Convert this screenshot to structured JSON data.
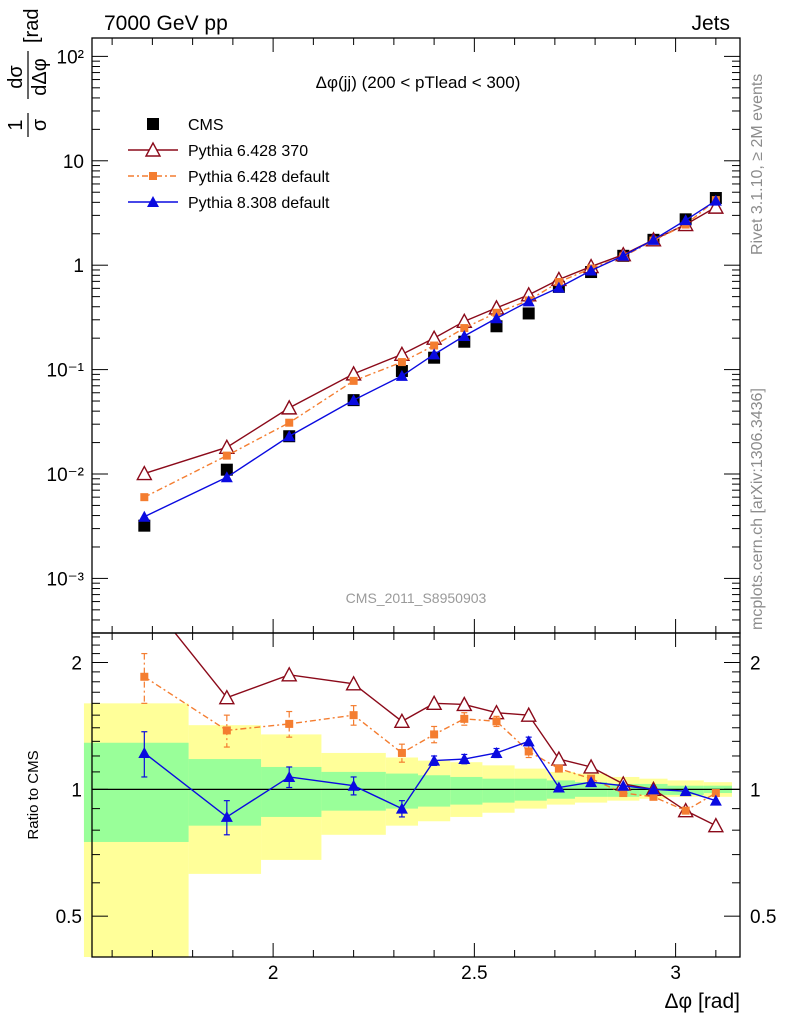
{
  "header": {
    "left": "7000 GeV pp",
    "right": "Jets"
  },
  "side_labels": {
    "rivet": "Rivet 3.1.10, ≥ 2M events",
    "mcplots": "mcplots.cern.ch [arXiv:1306.3436]"
  },
  "watermark": "CMS_2011_S8950903",
  "chart_data": {
    "type": "line",
    "title": "Δφ(jj) (200 < pTlead <  300)",
    "xlabel": "Δφ [rad]",
    "ylabel": "1/σ dσ/dΔφ [rad⁻¹]",
    "ratio_ylabel": "Ratio to CMS",
    "xlim": [
      1.55,
      3.16
    ],
    "ylim": [
      0.0003,
      150
    ],
    "yscale": "log",
    "ratio_ylim": [
      0.4,
      2.35
    ],
    "ratio_yscale": "log",
    "x_ticks": [
      2,
      2.5,
      3
    ],
    "x_tick_labels": [
      "2",
      "2.5",
      "3"
    ],
    "y_tick_labels": [
      "10⁻³",
      "10⁻²",
      "10⁻¹",
      "1",
      "10",
      "10²"
    ],
    "ratio_ticks": [
      0.5,
      1,
      2
    ],
    "ratio_tick_labels": [
      "0.5",
      "1",
      "2"
    ],
    "legend_position": "top-left",
    "x": [
      1.68,
      1.885,
      2.04,
      2.2,
      2.32,
      2.4,
      2.475,
      2.555,
      2.635,
      2.71,
      2.79,
      2.87,
      2.945,
      3.025,
      3.1
    ],
    "series": [
      {
        "name": "CMS",
        "color": "#000000",
        "marker": "square",
        "values": [
          0.0032,
          0.011,
          0.023,
          0.051,
          0.097,
          0.13,
          0.185,
          0.26,
          0.345,
          0.62,
          0.86,
          1.23,
          1.75,
          2.75,
          4.4
        ]
      },
      {
        "name": "Pythia 6.428 370",
        "color": "#8b0a1a",
        "marker": "triangle-open",
        "line": "solid",
        "values": [
          0.0101,
          0.018,
          0.043,
          0.091,
          0.14,
          0.2,
          0.29,
          0.39,
          0.52,
          0.73,
          0.97,
          1.26,
          1.75,
          2.45,
          3.6
        ],
        "ratio": [
          2.9,
          1.65,
          1.87,
          1.78,
          1.45,
          1.6,
          1.59,
          1.52,
          1.5,
          1.18,
          1.13,
          1.03,
          1.0,
          0.89,
          0.82
        ]
      },
      {
        "name": "Pythia 6.428 default",
        "color": "#f47d30",
        "marker": "square-small",
        "line": "dashdot",
        "values": [
          0.006,
          0.015,
          0.031,
          0.078,
          0.118,
          0.17,
          0.25,
          0.35,
          0.46,
          0.69,
          0.93,
          1.21,
          1.72,
          2.45,
          4.2
        ],
        "ratio": [
          1.85,
          1.38,
          1.43,
          1.5,
          1.22,
          1.35,
          1.47,
          1.45,
          1.23,
          1.12,
          1.06,
          0.98,
          0.96,
          0.89,
          0.98
        ],
        "ratio_err": [
          0.25,
          0.12,
          0.1,
          0.08,
          0.06,
          0.06,
          0.05,
          0.04,
          0.04,
          0.0,
          0.0,
          0.0,
          0.0,
          0.0,
          0.0
        ]
      },
      {
        "name": "Pythia 8.308 default",
        "color": "#0a0ae0",
        "marker": "triangle",
        "line": "solid",
        "values": [
          0.0039,
          0.0093,
          0.023,
          0.051,
          0.087,
          0.14,
          0.21,
          0.31,
          0.45,
          0.61,
          0.89,
          1.23,
          1.75,
          2.7,
          4.15
        ],
        "ratio": [
          1.22,
          0.86,
          1.07,
          1.02,
          0.9,
          1.17,
          1.18,
          1.22,
          1.3,
          1.01,
          1.04,
          1.02,
          1.0,
          0.99,
          0.94
        ],
        "ratio_err": [
          0.15,
          0.08,
          0.06,
          0.05,
          0.04,
          0.03,
          0.03,
          0.03,
          0.03,
          0.0,
          0.0,
          0.0,
          0.0,
          0.0,
          0.0
        ]
      }
    ],
    "uncertainty_bands": {
      "bin_edges": [
        1.53,
        1.79,
        1.97,
        2.12,
        2.28,
        2.36,
        2.44,
        2.52,
        2.6,
        2.68,
        2.75,
        2.83,
        2.91,
        2.98,
        3.07,
        3.14
      ],
      "yellow": [
        [
          0.3,
          1.6
        ],
        [
          0.63,
          1.42
        ],
        [
          0.68,
          1.35
        ],
        [
          0.78,
          1.22
        ],
        [
          0.82,
          1.19
        ],
        [
          0.84,
          1.17
        ],
        [
          0.86,
          1.16
        ],
        [
          0.88,
          1.14
        ],
        [
          0.9,
          1.12
        ],
        [
          0.92,
          1.1
        ],
        [
          0.93,
          1.09
        ],
        [
          0.94,
          1.07
        ],
        [
          0.95,
          1.06
        ],
        [
          0.96,
          1.05
        ],
        [
          0.96,
          1.04
        ]
      ],
      "green": [
        [
          0.75,
          1.29
        ],
        [
          0.82,
          1.18
        ],
        [
          0.86,
          1.13
        ],
        [
          0.89,
          1.1
        ],
        [
          0.9,
          1.09
        ],
        [
          0.91,
          1.08
        ],
        [
          0.92,
          1.07
        ],
        [
          0.93,
          1.06
        ],
        [
          0.94,
          1.06
        ],
        [
          0.95,
          1.05
        ],
        [
          0.96,
          1.04
        ],
        [
          0.96,
          1.03
        ],
        [
          0.97,
          1.03
        ],
        [
          0.97,
          1.02
        ],
        [
          0.98,
          1.02
        ]
      ]
    }
  }
}
